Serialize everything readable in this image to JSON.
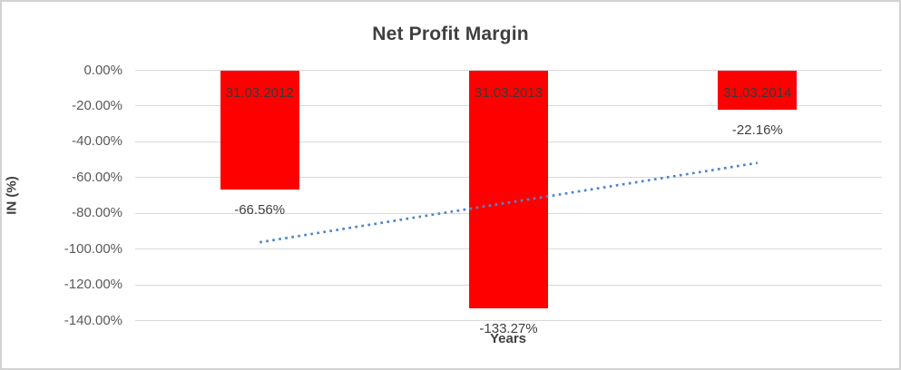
{
  "chart_data": {
    "type": "bar",
    "title": "Net Profit Margin",
    "xlabel": "Years",
    "ylabel": "IN (%)",
    "categories": [
      "31.03.2012",
      "31.03.2013",
      "31.03.2014"
    ],
    "values": [
      -66.56,
      -133.27,
      -22.16
    ],
    "data_labels": [
      "-66.56%",
      "-133.27%",
      "-22.16%"
    ],
    "ytick_labels": [
      "0.00%",
      "-20.00%",
      "-40.00%",
      "-60.00%",
      "-80.00%",
      "-100.00%",
      "-120.00%",
      "-140.00%"
    ],
    "ylim": [
      0,
      -140
    ],
    "ytick_step": -20,
    "grid": true,
    "legend": "none",
    "colors": {
      "bar": "#ff0000",
      "gridline": "#d9d9d9",
      "trendline": "#4e87c7",
      "tick_text": "#595959",
      "label_text": "#404040",
      "title_text": "#3f3f3f"
    },
    "trendline": {
      "type": "linear",
      "style": "dotted",
      "start_value": -96.2,
      "end_value": -51.8
    }
  }
}
